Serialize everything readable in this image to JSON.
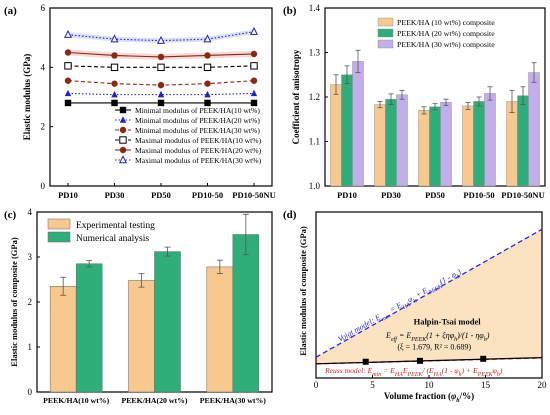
{
  "figure": {
    "panel_labels": [
      "(a)",
      "(b)",
      "(c)",
      "(d)"
    ]
  },
  "colors": {
    "frame": "#000000",
    "blue": "#1f1fd0",
    "brown": "#8b2a12",
    "band_red": "#f2b9b9",
    "band_blue": "#b9c6f2",
    "peach": "#f8c88e",
    "green": "#2fae7a",
    "purple": "#c2aee8",
    "voigt": "#2a2ad8",
    "reuss": "#d02020",
    "fill_region": "#fbe3c2"
  },
  "chart_data": [
    {
      "panel": "(a)",
      "type": "line",
      "categories": [
        "PD10",
        "PD30",
        "PD50",
        "PD10-50",
        "PD10-50NU"
      ],
      "ylabel": "Elastic modulus (GPa)",
      "xlabel": "",
      "ylim": [
        0,
        6
      ],
      "yticks": [
        0,
        2,
        4,
        6
      ],
      "legend_position": "bottom-right",
      "series": [
        {
          "name": "Minimal modulus of PEEK/HA(10 wt%)",
          "color": "#000000",
          "dash": "solid",
          "marker": "square",
          "values": [
            2.8,
            2.8,
            2.8,
            2.8,
            2.8
          ]
        },
        {
          "name": "Minimal modulus of PEEK/HA(20 wt%)",
          "color": "#1f1fd0",
          "dash": "dotted",
          "marker": "triangle",
          "values": [
            3.12,
            3.08,
            3.08,
            3.08,
            3.12
          ]
        },
        {
          "name": "Minimal modulus of PEEK/HA(30 wt%)",
          "color": "#8b2a12",
          "dash": "dashed",
          "marker": "circle",
          "values": [
            3.55,
            3.45,
            3.4,
            3.45,
            3.55
          ]
        },
        {
          "name": "Maximal modulus of PEEK/HA(10 wt%)",
          "color": "#000000",
          "dash": "dashed",
          "marker": "square-open",
          "values": [
            4.05,
            4.0,
            4.0,
            4.0,
            4.05
          ]
        },
        {
          "name": "Maximal modulus of PEEK/HA(20 wt%)",
          "color": "#8b2a12",
          "dash": "solid",
          "marker": "circle",
          "values": [
            4.5,
            4.4,
            4.35,
            4.4,
            4.45
          ]
        },
        {
          "name": "Maximal modulus of PEEK/HA(30 wt%)",
          "color": "#1f1fd0",
          "dash": "dotted",
          "marker": "triangle-open",
          "values": [
            5.1,
            4.95,
            4.9,
            4.95,
            5.2
          ]
        }
      ]
    },
    {
      "panel": "(b)",
      "type": "bar",
      "categories": [
        "PD10",
        "PD30",
        "PD50",
        "PD10-50",
        "PD10-50NU"
      ],
      "ylabel": "Coefficient of anisotropy",
      "xlabel": "",
      "ylim": [
        1.0,
        1.4
      ],
      "yticks": [
        1.0,
        1.1,
        1.2,
        1.3,
        1.4
      ],
      "legend_position": "top-right",
      "series": [
        {
          "name": "PEEK/HA (10 wt%) composite",
          "color": "#f8c88e",
          "values": [
            1.228,
            1.183,
            1.17,
            1.18,
            1.19
          ],
          "errors": [
            0.022,
            0.007,
            0.008,
            0.008,
            0.025
          ]
        },
        {
          "name": "PEEK/HA (20 wt%) composite",
          "color": "#2fae7a",
          "values": [
            1.25,
            1.195,
            1.178,
            1.19,
            1.203
          ],
          "errors": [
            0.02,
            0.012,
            0.007,
            0.01,
            0.02
          ]
        },
        {
          "name": "PEEK/HA (30 wt%) composite",
          "color": "#c2aee8",
          "values": [
            1.28,
            1.205,
            1.188,
            1.208,
            1.255
          ],
          "errors": [
            0.025,
            0.01,
            0.007,
            0.015,
            0.022
          ]
        }
      ]
    },
    {
      "panel": "(c)",
      "type": "bar",
      "categories": [
        "PEEK/HA(10 wt%)",
        "PEEK/HA(20 wt%)",
        "PEEK/HA(30 wt%)"
      ],
      "ylabel": "Elastic modulus of composite (GPa)",
      "xlabel": "",
      "ylim": [
        0,
        4
      ],
      "yticks": [
        0,
        1,
        2,
        3,
        4
      ],
      "legend_position": "top-left",
      "series": [
        {
          "name": "Experimental testing",
          "color": "#f8c88e",
          "values": [
            2.35,
            2.48,
            2.78
          ],
          "errors": [
            0.2,
            0.15,
            0.15
          ]
        },
        {
          "name": "Numerical analysis",
          "color": "#2fae7a",
          "values": [
            2.85,
            3.12,
            3.5
          ],
          "errors": [
            0.07,
            0.1,
            0.45
          ]
        }
      ]
    },
    {
      "panel": "(d)",
      "type": "line",
      "xlabel_prefix": "Volume fraction (",
      "xlabel_math": "φ",
      "xlabel_sub": "h",
      "xlabel_suffix": "/%)",
      "ylabel": "Elastic modulus of composite (GPa)",
      "xlim": [
        0,
        20
      ],
      "xticks": [
        0,
        5,
        10,
        15,
        20
      ],
      "ylim": [
        0,
        24
      ],
      "points": {
        "x": [
          4.4,
          9.2,
          14.8
        ],
        "y": [
          2.35,
          2.48,
          2.78
        ]
      },
      "series": [
        {
          "name": "Voigt model",
          "color": "#2a2ad8",
          "x": [
            0,
            20
          ],
          "y": [
            3.0,
            21.5
          ]
        },
        {
          "name": "Reuss model",
          "color": "#d02020",
          "x": [
            0,
            20
          ],
          "y": [
            2.05,
            2.9
          ]
        },
        {
          "name": "Halpin-Tsai model",
          "color": "#000000",
          "x": [
            0,
            20
          ],
          "y": [
            2.05,
            2.95
          ]
        }
      ],
      "annotations": {
        "voigt_prefix": "Voigt model: ",
        "voigt_eq": "E",
        "voigt_sub": "max",
        "voigt_rest": " = E",
        "voigt_sub2": "HA",
        "voigt_phi": "φ",
        "voigt_sub3": "h",
        "voigt_rest2": " + E",
        "voigt_sub4": "PEEK",
        "voigt_rest3": "(1 - φ",
        "voigt_sub5": "h",
        "voigt_rest4": ")",
        "halpin_title": "Halpin-Tsai model",
        "halpin_eq_a": "E",
        "halpin_eq_a_sub": "eff",
        "halpin_eq_b": " = E",
        "halpin_eq_b_sub": "PEEK",
        "halpin_eq_c": "(1 + ξηφ",
        "halpin_eq_c_sub": "h",
        "halpin_eq_d": ")/(1 - ηφ",
        "halpin_eq_d_sub": "h",
        "halpin_eq_e": ")",
        "halpin_params": "(ξ = 1.679,  R² = 0.689)",
        "reuss_prefix": "Reuss model: ",
        "reuss_eq": "E",
        "reuss_sub": "min",
        "reuss_rest": " = E",
        "reuss_sub2": "HA",
        "reuss_rest2": "E",
        "reuss_sub3": "PEEK",
        "reuss_rest3": "/ (E",
        "reuss_sub4": "HA",
        "reuss_rest4": "(1 - φ",
        "reuss_sub5": "h",
        "reuss_rest5": ") + E",
        "reuss_sub6": "PEEK",
        "reuss_rest6": "φ",
        "reuss_sub7": "h",
        "reuss_rest7": ")"
      }
    }
  ]
}
